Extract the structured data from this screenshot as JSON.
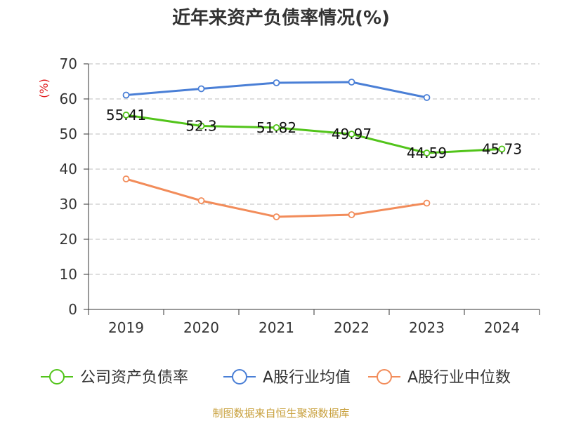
{
  "chart_data": {
    "type": "line",
    "title": "近年来资产负债率情况(%)",
    "ylabel": "(%)",
    "categories": [
      "2019",
      "2020",
      "2021",
      "2022",
      "2023",
      "2024"
    ],
    "yticks": [
      "0",
      "10",
      "20",
      "30",
      "40",
      "50",
      "60",
      "70"
    ],
    "ylim": [
      0,
      70
    ],
    "grid": true,
    "legend_position": "bottom",
    "series": [
      {
        "name": "公司资产负债率",
        "color": "#52c41a",
        "values": [
          55.41,
          52.3,
          51.82,
          49.97,
          44.59,
          45.73
        ],
        "labels": [
          "55.41",
          "52.3",
          "51.82",
          "49.97",
          "44.59",
          "45.73"
        ]
      },
      {
        "name": "A股行业均值",
        "color": "#4a7fd6",
        "values": [
          61.1,
          62.9,
          64.6,
          64.8,
          60.4,
          null
        ]
      },
      {
        "name": "A股行业中位数",
        "color": "#f28c5a",
        "values": [
          37.2,
          31.0,
          26.4,
          27.0,
          30.3,
          null
        ]
      }
    ]
  },
  "source_note": "制图数据来自恒生聚源数据库"
}
